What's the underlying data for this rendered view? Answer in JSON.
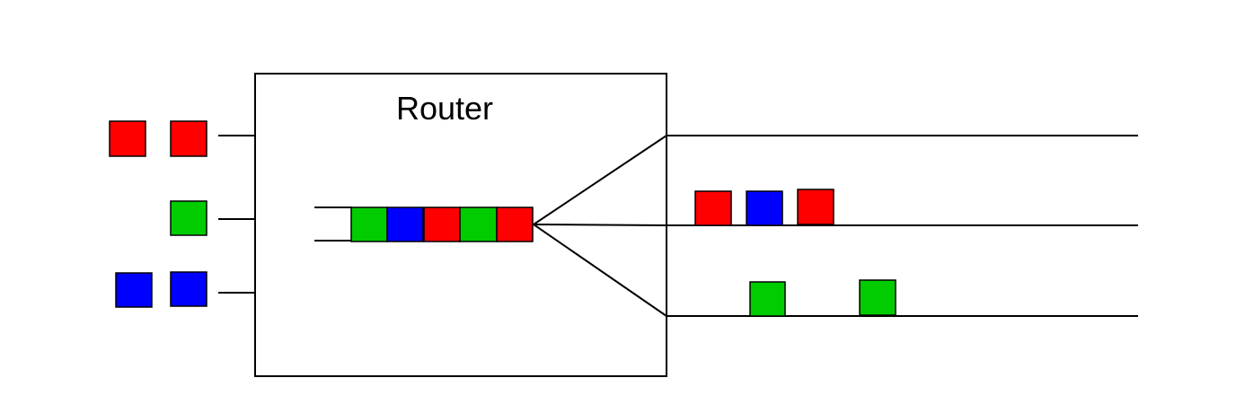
{
  "title": "Router",
  "colors": {
    "red": "#ff0000",
    "green": "#00cc00",
    "blue": "#0000ff",
    "line": "#000000",
    "background": "#ffffff"
  },
  "input_packets": {
    "top": [
      "red",
      "red"
    ],
    "middle": [
      "green"
    ],
    "bottom": [
      "blue",
      "blue"
    ]
  },
  "queue_packets": [
    "green",
    "blue",
    "red",
    "green",
    "red"
  ],
  "output_packets": {
    "top": [],
    "middle": [
      "red",
      "blue",
      "red"
    ],
    "bottom": [
      "green",
      "green"
    ]
  }
}
